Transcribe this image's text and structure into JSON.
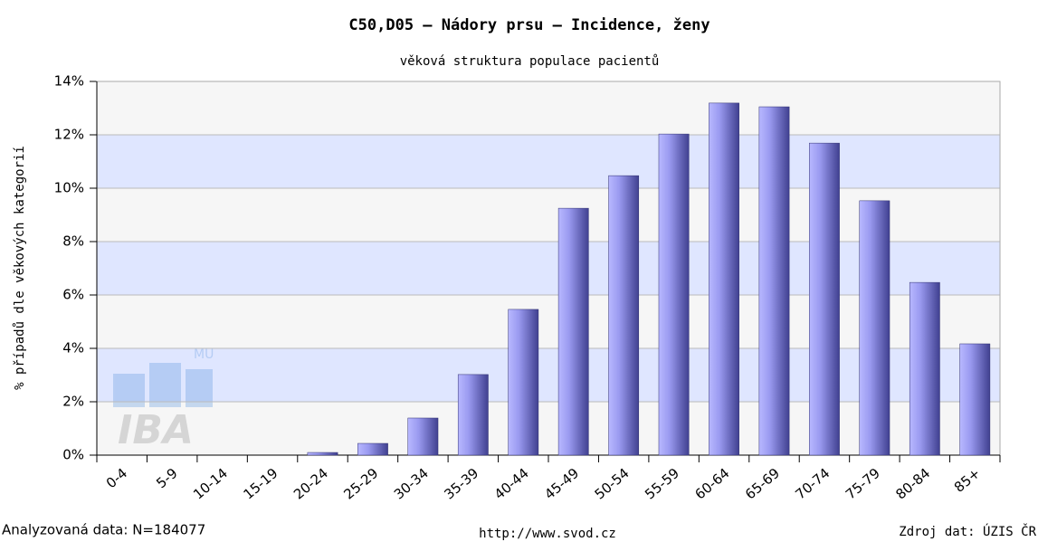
{
  "chart_data": {
    "type": "bar",
    "title": "C50,D05 – Nádory prsu – Incidence, ženy",
    "subtitle": "věková struktura populace pacientů",
    "y_label": "% případů dle věkových kategorií",
    "categories": [
      "0-4",
      "5-9",
      "10-14",
      "15-19",
      "20-24",
      "25-29",
      "30-34",
      "35-39",
      "40-44",
      "45-49",
      "50-54",
      "55-59",
      "60-64",
      "65-69",
      "70-74",
      "75-79",
      "80-84",
      "85+"
    ],
    "values": [
      0,
      0,
      0,
      0,
      0.1,
      0.44,
      1.39,
      3.02,
      5.46,
      9.25,
      10.47,
      12.03,
      13.19,
      13.05,
      11.69,
      9.53,
      6.47,
      4.17
    ],
    "color": "#8888e8",
    "ylim": [
      0,
      14
    ],
    "yticks": [
      {
        "value": 0,
        "label": "0%"
      },
      {
        "value": 2,
        "label": "2%"
      },
      {
        "value": 4,
        "label": "4%"
      },
      {
        "value": 6,
        "label": "6%"
      },
      {
        "value": 8,
        "label": "8%"
      },
      {
        "value": 10,
        "label": "10%"
      },
      {
        "value": 12,
        "label": "12%"
      },
      {
        "value": 14,
        "label": "14%"
      }
    ],
    "grid": true,
    "footer_left": "Analyzovaná data: N=184077",
    "footer_center": "http://www.svod.cz",
    "footer_right": "Zdroj dat: ÚZIS ČR",
    "watermark": "IBA",
    "watermark_small": "MU"
  }
}
